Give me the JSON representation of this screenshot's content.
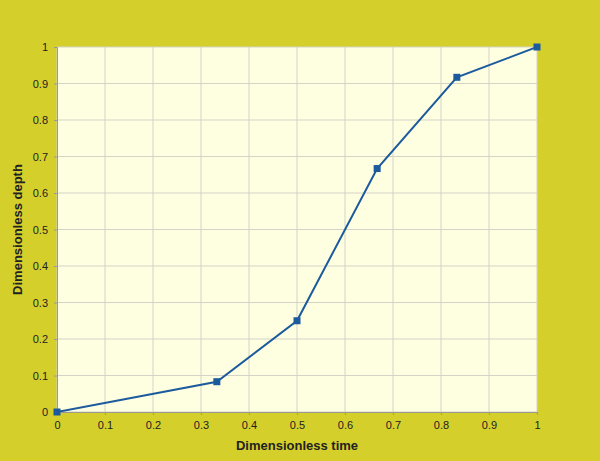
{
  "chart_data": {
    "type": "line",
    "x_label": "Dimensionless time",
    "y_label": "Dimensionless depth",
    "x": [
      0,
      0.333,
      0.5,
      0.667,
      0.833,
      1
    ],
    "values": [
      0,
      0.083,
      0.25,
      0.667,
      0.917,
      1
    ],
    "color": "#1c5a9e",
    "marker": "square",
    "line_style": "solid",
    "xlim": [
      0,
      1
    ],
    "xticks": [
      0,
      0.1,
      0.2,
      0.3,
      0.4,
      0.5,
      0.6,
      0.7,
      0.8,
      0.9,
      1
    ],
    "ylim": [
      0,
      1
    ],
    "yticks": [
      0,
      0.1,
      0.2,
      0.3,
      0.4,
      0.5,
      0.6,
      0.7,
      0.8,
      0.9,
      1
    ],
    "grid": true
  }
}
